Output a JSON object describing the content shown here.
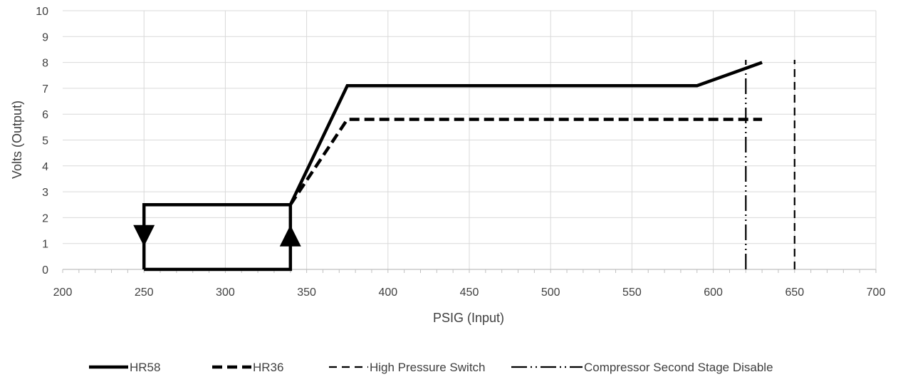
{
  "chart_data": {
    "type": "line",
    "xlabel": "PSIG (Input)",
    "ylabel": "Volts (Output)",
    "xlim": [
      200,
      700
    ],
    "ylim": [
      0,
      10
    ],
    "x_ticks": [
      200,
      250,
      300,
      350,
      400,
      450,
      500,
      550,
      600,
      650,
      700
    ],
    "y_ticks": [
      0,
      1,
      2,
      3,
      4,
      5,
      6,
      7,
      8,
      9,
      10
    ],
    "x_minor_step": 10,
    "grid": true,
    "legend_position": "bottom",
    "series": [
      {
        "name": "HR58",
        "style": "solid",
        "color": "#000000",
        "points": [
          [
            250,
            0
          ],
          [
            340,
            0
          ],
          [
            340,
            2.5
          ],
          [
            250,
            2.5
          ],
          [
            250,
            0
          ]
        ],
        "points_main": [
          [
            340,
            2.5
          ],
          [
            375,
            7.1
          ],
          [
            590,
            7.1
          ],
          [
            630,
            8.0
          ]
        ]
      },
      {
        "name": "HR36",
        "style": "dashed-heavy",
        "color": "#000000",
        "points": [
          [
            340,
            2.5
          ],
          [
            375,
            5.8
          ],
          [
            630,
            5.8
          ]
        ]
      },
      {
        "name": "High Pressure Switch",
        "style": "dashed",
        "color": "#000000",
        "points": [
          [
            650,
            0
          ],
          [
            650,
            8.1
          ]
        ]
      },
      {
        "name": "Compressor Second Stage Disable",
        "style": "dash-dot-dot",
        "color": "#000000",
        "points": [
          [
            620,
            0
          ],
          [
            620,
            8.1
          ]
        ]
      }
    ],
    "annotations": [
      {
        "type": "arrow-down",
        "x": 250,
        "y": 1.3
      },
      {
        "type": "arrow-up",
        "x": 340,
        "y": 1.3
      }
    ]
  }
}
